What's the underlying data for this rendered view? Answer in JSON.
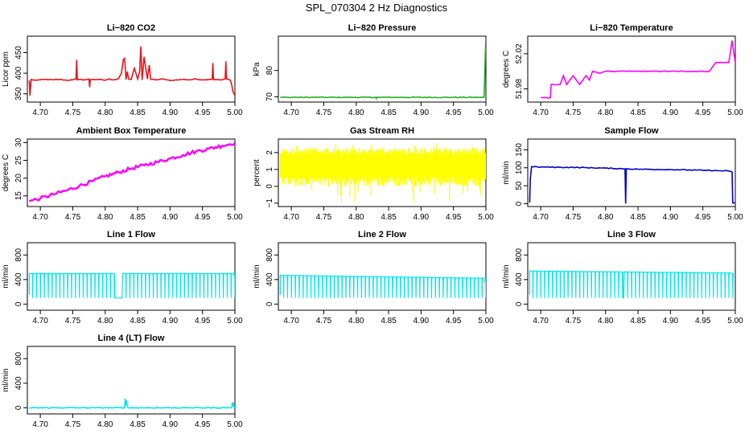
{
  "figure": {
    "title": "SPL_070304  2 Hz Diagnostics"
  },
  "chart_data": [
    {
      "type": "line",
      "title": "Li−820 CO2",
      "xlabel": "",
      "ylabel": "Licor ppm",
      "color": "#e8141c",
      "xlim": [
        4.68,
        5.0
      ],
      "ylim": [
        330,
        490
      ],
      "xticks": [
        "4.70",
        "4.75",
        "4.80",
        "4.85",
        "4.90",
        "4.95",
        "5.00"
      ],
      "xtick_values": [
        4.7,
        4.75,
        4.8,
        4.85,
        4.9,
        4.95,
        5.0
      ],
      "yticks": [
        "350",
        "400",
        "450"
      ],
      "ytick_values": [
        350,
        400,
        450
      ],
      "series": [
        {
          "name": "CO2",
          "x": [
            4.683,
            4.684,
            4.686,
            4.69,
            4.7,
            4.71,
            4.72,
            4.73,
            4.74,
            4.75,
            4.755,
            4.756,
            4.757,
            4.76,
            4.77,
            4.775,
            4.776,
            4.777,
            4.78,
            4.79,
            4.8,
            4.805,
            4.81,
            4.82,
            4.825,
            4.828,
            4.83,
            4.832,
            4.834,
            4.836,
            4.84,
            4.845,
            4.85,
            4.853,
            4.855,
            4.857,
            4.86,
            4.865,
            4.868,
            4.87,
            4.875,
            4.88,
            4.89,
            4.9,
            4.91,
            4.92,
            4.93,
            4.94,
            4.95,
            4.96,
            4.965,
            4.966,
            4.967,
            4.97,
            4.98,
            4.985,
            4.986,
            4.987,
            4.99,
            4.993,
            4.995,
            4.997,
            5.0
          ],
          "y": [
            383,
            346,
            385,
            383,
            384,
            385,
            384,
            385,
            383,
            384,
            386,
            432,
            384,
            385,
            384,
            386,
            366,
            384,
            385,
            385,
            383,
            386,
            384,
            386,
            400,
            433,
            436,
            385,
            404,
            386,
            385,
            412,
            386,
            402,
            465,
            384,
            440,
            386,
            420,
            385,
            385,
            384,
            386,
            382,
            384,
            385,
            384,
            386,
            384,
            385,
            386,
            425,
            384,
            385,
            384,
            386,
            429,
            386,
            385,
            383,
            372,
            355,
            346
          ]
        }
      ]
    },
    {
      "type": "line",
      "title": "Li−820 Pressure",
      "xlabel": "",
      "ylabel": "kPa",
      "color": "#22b022",
      "xlim": [
        4.68,
        5.0
      ],
      "ylim": [
        68,
        93
      ],
      "xticks": [
        "4.70",
        "4.75",
        "4.80",
        "4.85",
        "4.90",
        "4.95",
        "5.00"
      ],
      "xtick_values": [
        4.7,
        4.75,
        4.8,
        4.85,
        4.9,
        4.95,
        5.0
      ],
      "yticks": [
        "70",
        "80"
      ],
      "ytick_values": [
        70,
        80
      ],
      "series": [
        {
          "name": "Pressure",
          "x": [
            4.683,
            4.75,
            4.8,
            4.83,
            4.831,
            4.832,
            4.9,
            4.95,
            4.997,
            4.998,
            4.999,
            5.0
          ],
          "y": [
            69.8,
            69.8,
            69.8,
            69.8,
            69.3,
            69.8,
            69.8,
            69.8,
            69.8,
            76,
            86,
            92
          ]
        }
      ]
    },
    {
      "type": "line",
      "title": "Li−820 Temperature",
      "xlabel": "",
      "ylabel": "degrees C",
      "color": "#ff00ff",
      "xlim": [
        4.68,
        5.0
      ],
      "ylim": [
        51.965,
        52.04
      ],
      "xticks": [
        "4.70",
        "4.75",
        "4.80",
        "4.85",
        "4.90",
        "4.95",
        "5.00"
      ],
      "xtick_values": [
        4.7,
        4.75,
        4.8,
        4.85,
        4.9,
        4.95,
        5.0
      ],
      "yticks": [
        "51.98",
        "52.02"
      ],
      "ytick_values": [
        51.98,
        52.02
      ],
      "series": [
        {
          "name": "Temperature",
          "x": [
            4.7,
            4.715,
            4.716,
            4.73,
            4.735,
            4.74,
            4.75,
            4.76,
            4.77,
            4.775,
            4.78,
            4.79,
            4.8,
            4.85,
            4.9,
            4.95,
            4.96,
            4.97,
            4.98,
            4.99,
            4.995,
            5.0
          ],
          "y": [
            51.97,
            51.97,
            51.985,
            51.985,
            51.995,
            51.985,
            51.995,
            51.985,
            51.995,
            51.99,
            52.0,
            51.998,
            52.0,
            52.0,
            52.0,
            52.0,
            52.0,
            52.01,
            52.01,
            52.01,
            52.035,
            52.01
          ]
        }
      ]
    },
    {
      "type": "line",
      "title": "Ambient Box Temperature",
      "xlabel": "",
      "ylabel": "degrees C",
      "color": "#ff00ff",
      "xlim": [
        4.68,
        5.0
      ],
      "ylim": [
        12,
        31
      ],
      "xticks": [
        "4.70",
        "4.75",
        "4.80",
        "4.85",
        "4.90",
        "4.95",
        "5.00"
      ],
      "xtick_values": [
        4.7,
        4.75,
        4.8,
        4.85,
        4.9,
        4.95,
        5.0
      ],
      "yticks": [
        "15",
        "20",
        "25",
        "30"
      ],
      "ytick_values": [
        15,
        20,
        25,
        30
      ],
      "series": [
        {
          "name": "Ambient",
          "x": [
            4.683,
            4.7,
            4.72,
            4.74,
            4.76,
            4.78,
            4.8,
            4.82,
            4.84,
            4.86,
            4.88,
            4.9,
            4.92,
            4.94,
            4.96,
            4.98,
            5.0
          ],
          "y": [
            13.5,
            14.3,
            15.4,
            16.5,
            17.8,
            19.1,
            20.5,
            21.6,
            22.7,
            23.6,
            24.5,
            25.5,
            26.5,
            27.5,
            28.3,
            29.1,
            29.9
          ]
        }
      ]
    },
    {
      "type": "area",
      "title": "Gas Stream RH",
      "xlabel": "",
      "ylabel": "percent",
      "color": "#ffff00",
      "xlim": [
        4.68,
        5.0
      ],
      "ylim": [
        -1.2,
        2.8
      ],
      "xticks": [
        "4.70",
        "4.75",
        "4.80",
        "4.85",
        "4.90",
        "4.95",
        "5.00"
      ],
      "xtick_values": [
        4.7,
        4.75,
        4.8,
        4.85,
        4.9,
        4.95,
        5.0
      ],
      "yticks": [
        "−1",
        "0",
        "1",
        "2"
      ],
      "ytick_values": [
        -1,
        0,
        1,
        2
      ],
      "band": {
        "low": 0.3,
        "high": 2.0,
        "min": -1.0,
        "max": 2.6
      }
    },
    {
      "type": "line",
      "title": "Sample Flow",
      "xlabel": "",
      "ylabel": "ml/min",
      "color": "#0000c8",
      "xlim": [
        4.68,
        5.0
      ],
      "ylim": [
        -8,
        180
      ],
      "xticks": [
        "4.70",
        "4.75",
        "4.80",
        "4.85",
        "4.90",
        "4.95",
        "5.00"
      ],
      "xtick_values": [
        4.7,
        4.75,
        4.8,
        4.85,
        4.9,
        4.95,
        5.0
      ],
      "yticks": [
        "0",
        "50",
        "100",
        "150"
      ],
      "ytick_values": [
        0,
        50,
        100,
        150
      ],
      "series": [
        {
          "name": "Sample",
          "x": [
            4.683,
            4.684,
            4.686,
            4.7,
            4.75,
            4.8,
            4.83,
            4.831,
            4.832,
            4.85,
            4.9,
            4.95,
            4.99,
            4.995,
            4.996,
            5.0
          ],
          "y": [
            3,
            70,
            103,
            102,
            101,
            99,
            97,
            0,
            97,
            96,
            95,
            93,
            91,
            88,
            2,
            2
          ]
        }
      ]
    },
    {
      "type": "line",
      "title": "Line 1 Flow",
      "xlabel": "",
      "ylabel": "ml/min",
      "color": "#00e5ee",
      "xlim": [
        4.68,
        5.0
      ],
      "ylim": [
        -100,
        1000
      ],
      "xticks": [
        "4.70",
        "4.75",
        "4.80",
        "4.85",
        "4.90",
        "4.95",
        "5.00"
      ],
      "xtick_values": [
        4.7,
        4.75,
        4.8,
        4.85,
        4.9,
        4.95,
        5.0
      ],
      "yticks": [
        "0",
        "400",
        "800"
      ],
      "ytick_values": [
        0,
        400,
        800
      ],
      "pulse": {
        "x0": 4.683,
        "x1": 4.997,
        "high": 500,
        "low": 100,
        "period": 0.006,
        "gap": [
          4.812,
          4.827
        ],
        "end": 460
      }
    },
    {
      "type": "line",
      "title": "Line 2 Flow",
      "xlabel": "",
      "ylabel": "ml/min",
      "color": "#00e5ee",
      "xlim": [
        4.68,
        5.0
      ],
      "ylim": [
        -100,
        1000
      ],
      "xticks": [
        "4.70",
        "4.75",
        "4.80",
        "4.85",
        "4.90",
        "4.95",
        "5.00"
      ],
      "xtick_values": [
        4.7,
        4.75,
        4.8,
        4.85,
        4.9,
        4.95,
        5.0
      ],
      "yticks": [
        "0",
        "400",
        "800"
      ],
      "ytick_values": [
        0,
        400,
        800
      ],
      "pulse": {
        "x0": 4.683,
        "x1": 4.997,
        "high": 470,
        "low": 100,
        "period": 0.006,
        "gap": [
          4.828,
          4.831
        ],
        "end": 360,
        "slope": -0.15
      }
    },
    {
      "type": "line",
      "title": "Line 3 Flow",
      "xlabel": "",
      "ylabel": "ml/min",
      "color": "#00e5ee",
      "xlim": [
        4.68,
        5.0
      ],
      "ylim": [
        -100,
        1000
      ],
      "xticks": [
        "4.70",
        "4.75",
        "4.80",
        "4.85",
        "4.90",
        "4.95",
        "5.00"
      ],
      "xtick_values": [
        4.7,
        4.75,
        4.8,
        4.85,
        4.9,
        4.95,
        5.0
      ],
      "yticks": [
        "0",
        "400",
        "800"
      ],
      "ytick_values": [
        0,
        400,
        800
      ],
      "pulse": {
        "x0": 4.683,
        "x1": 4.997,
        "high": 540,
        "low": 100,
        "period": 0.006,
        "gap": [
          4.826,
          4.829
        ],
        "end": 460,
        "slope": -0.1
      }
    },
    {
      "type": "line",
      "title": "Line 4 (LT) Flow",
      "xlabel": "",
      "ylabel": "ml/min",
      "color": "#00e5ee",
      "xlim": [
        4.68,
        5.0
      ],
      "ylim": [
        -100,
        1000
      ],
      "xticks": [
        "4.70",
        "4.75",
        "4.80",
        "4.85",
        "4.90",
        "4.95",
        "5.00"
      ],
      "xtick_values": [
        4.7,
        4.75,
        4.8,
        4.85,
        4.9,
        4.95,
        5.0
      ],
      "yticks": [
        "0",
        "400",
        "800"
      ],
      "ytick_values": [
        0,
        400,
        800
      ],
      "series": [
        {
          "name": "Line4",
          "x": [
            4.683,
            4.83,
            4.831,
            4.832,
            4.833,
            4.834,
            4.836,
            4.9,
            4.995,
            4.996,
            4.997,
            4.998,
            5.0
          ],
          "y": [
            0,
            0,
            150,
            40,
            120,
            20,
            0,
            0,
            0,
            90,
            20,
            60,
            0
          ]
        }
      ]
    }
  ]
}
